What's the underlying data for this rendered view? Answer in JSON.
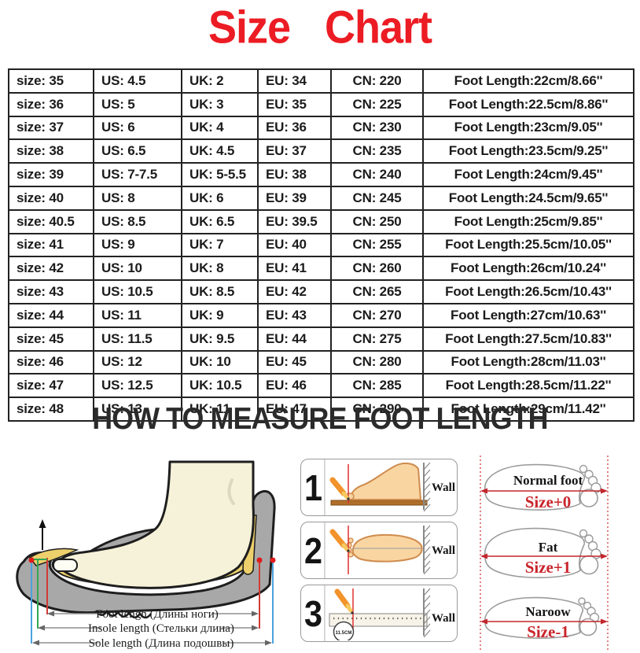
{
  "title": {
    "word1": "Size",
    "word2": "Chart",
    "color": "#ec1c24"
  },
  "size_table": {
    "column_keys": [
      "size",
      "us",
      "uk",
      "eu",
      "cn",
      "foot_length"
    ],
    "rows": [
      [
        "size: 35",
        "US: 4.5",
        "UK: 2",
        "EU: 34",
        "CN: 220",
        "Foot Length:22cm/8.66''"
      ],
      [
        "size: 36",
        "US: 5",
        "UK: 3",
        "EU: 35",
        "CN: 225",
        "Foot Length:22.5cm/8.86''"
      ],
      [
        "size: 37",
        "US: 6",
        "UK: 4",
        "EU: 36",
        "CN: 230",
        "Foot Length:23cm/9.05''"
      ],
      [
        "size: 38",
        "US: 6.5",
        "UK: 4.5",
        "EU: 37",
        "CN: 235",
        "Foot Length:23.5cm/9.25''"
      ],
      [
        "size: 39",
        "US: 7-7.5",
        "UK: 5-5.5",
        "EU: 38",
        "CN: 240",
        "Foot Length:24cm/9.45''"
      ],
      [
        "size: 40",
        "US: 8",
        "UK: 6",
        "EU: 39",
        "CN: 245",
        "Foot Length:24.5cm/9.65''"
      ],
      [
        "size: 40.5",
        "US: 8.5",
        "UK: 6.5",
        "EU: 39.5",
        "CN: 250",
        "Foot Length:25cm/9.85''"
      ],
      [
        "size: 41",
        "US: 9",
        "UK: 7",
        "EU: 40",
        "CN: 255",
        "Foot Length:25.5cm/10.05''"
      ],
      [
        "size: 42",
        "US: 10",
        "UK: 8",
        "EU: 41",
        "CN: 260",
        "Foot Length:26cm/10.24''"
      ],
      [
        "size: 43",
        "US: 10.5",
        "UK: 8.5",
        "EU: 42",
        "CN: 265",
        "Foot Length:26.5cm/10.43''"
      ],
      [
        "size: 44",
        "US: 11",
        "UK: 9",
        "EU: 43",
        "CN: 270",
        "Foot Length:27cm/10.63''"
      ],
      [
        "size: 45",
        "US: 11.5",
        "UK: 9.5",
        "EU: 44",
        "CN: 275",
        "Foot Length:27.5cm/10.83''"
      ],
      [
        "size: 46",
        "US: 12",
        "UK: 10",
        "EU: 45",
        "CN: 280",
        "Foot Length:28cm/11.03''"
      ],
      [
        "size: 47",
        "US: 12.5",
        "UK: 10.5",
        "EU: 46",
        "CN: 285",
        "Foot Length:28.5cm/11.22''"
      ],
      [
        "size: 48",
        "US: 13",
        "UK: 11",
        "EU: 47",
        "CN: 290",
        "Foot Length:29cm/11.42''"
      ]
    ]
  },
  "measure_section": {
    "heading": "HOW TO MEASURE FOOT LENGTH",
    "shoe_diagram": {
      "labels": [
        {
          "text": "Foot lengh (Длины ноги)",
          "line_color": "#d03a34"
        },
        {
          "text": "Insole length (Стельки длина)",
          "line_color": "#33a852"
        },
        {
          "text": "Sole length (Длина подошвы)",
          "line_color": "#4aa3df"
        }
      ]
    },
    "steps": [
      {
        "number": "1",
        "wall_label": "Wall"
      },
      {
        "number": "2",
        "wall_label": "Wall"
      },
      {
        "number": "3",
        "wall_label": "Wall",
        "ruler_mark": "11.5CM"
      }
    ],
    "foot_types": [
      {
        "name": "Normal foot",
        "size_label": "Size+0"
      },
      {
        "name": "Fat",
        "size_label": "Size+1"
      },
      {
        "name": "Naroow",
        "size_label": "Size-1"
      }
    ]
  },
  "colors": {
    "accent_red": "#ec1c24",
    "heading_dark": "#2b2b2b",
    "table_text": "#1b1b1b",
    "size_label_red": "#c9252b",
    "sole_gray": "#a8a8a8",
    "insole_yellow": "#edd06c",
    "foot_cream": "#f6f2d9",
    "skin": "#f9d5a2",
    "pencil_orange": "#f2932b",
    "board_brown": "#b06f2a"
  }
}
